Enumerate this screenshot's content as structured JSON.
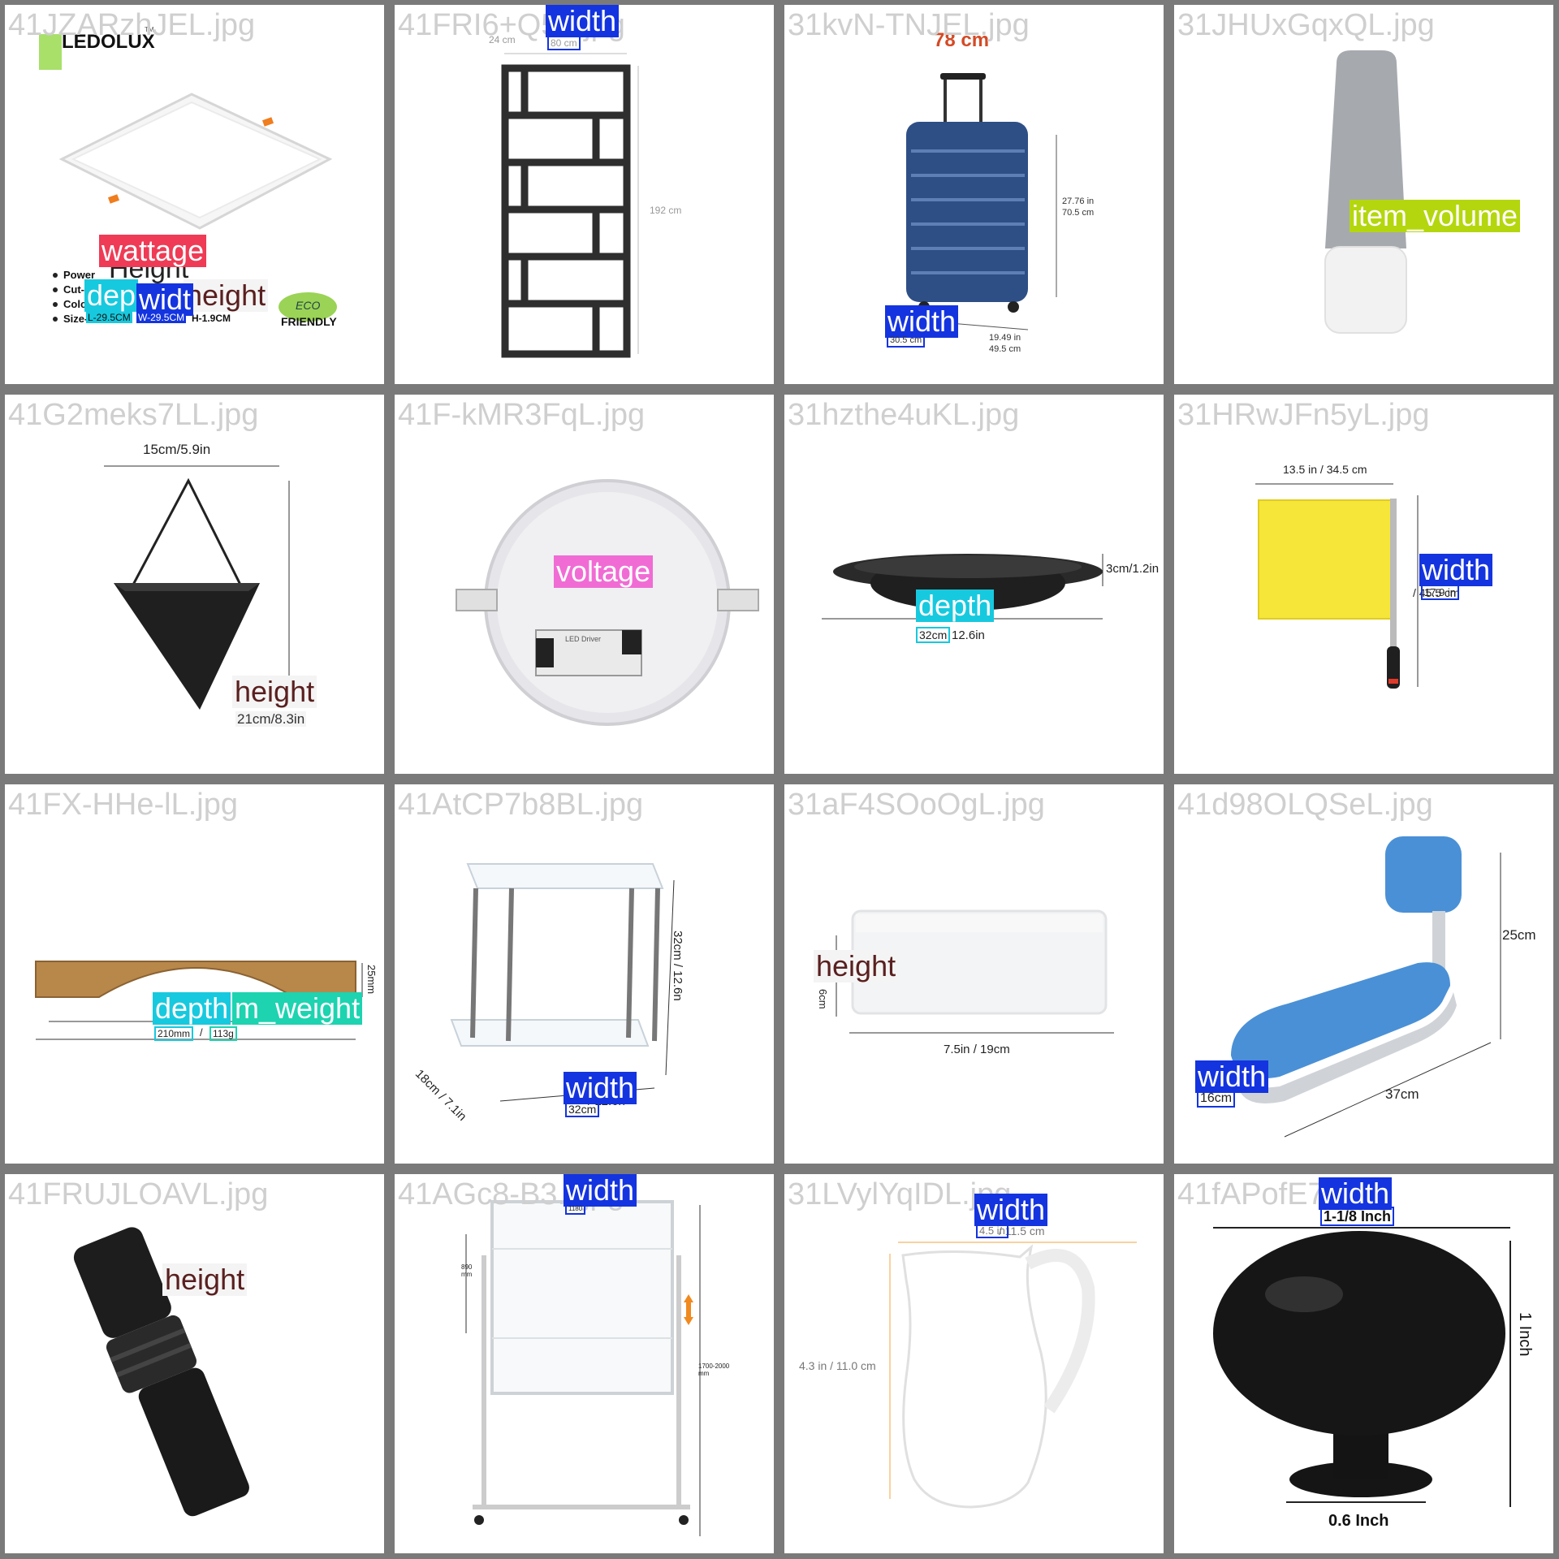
{
  "colors": {
    "width": "#1434e0",
    "depth": "#17c9de",
    "height": "#5a1f1f",
    "wattage": "#ef3b55",
    "voltage": "#f06cd4",
    "item_volume": "#b4d60e",
    "item_weight": "#1dd3b0",
    "grid_bg": "#7a7a7a"
  },
  "cells": [
    {
      "filename": "41JZARzhJEL.jpg",
      "image_text": {
        "brand": "LEDOLUX",
        "tm": "TM",
        "bullets": [
          "Power",
          "Cut-",
          "Colo",
          "Size-"
        ],
        "height_echo": "Height",
        "h_value": "H-1.9CM",
        "eco1": "ECO",
        "eco2": "FRIENDLY"
      },
      "labels": [
        {
          "label": "wattage",
          "value": ""
        },
        {
          "label": "dep",
          "value": "L-29.5CM"
        },
        {
          "label": "widt",
          "value": "W-29.5CM"
        },
        {
          "label": "height",
          "value": ""
        }
      ]
    },
    {
      "filename": "41FRI6+Q5...jpg",
      "image_text": {
        "top_dim": "24 cm",
        "side_dim": "192 cm"
      },
      "labels": [
        {
          "label": "width",
          "value": "80 cm"
        }
      ]
    },
    {
      "filename": "31kvN-TNJEL.jpg",
      "image_text": {
        "headline": "78 cm",
        "h_dim1": "27.76 in",
        "h_dim2": "70.5 cm",
        "w_dim1": "19.49 in",
        "w_dim2": "49.5 cm"
      },
      "labels": [
        {
          "label": "width",
          "value": "30.5 cm"
        }
      ]
    },
    {
      "filename": "31JHUxGqxQL.jpg",
      "image_text": {},
      "labels": [
        {
          "label": "item_volume",
          "value": ""
        }
      ]
    },
    {
      "filename": "41G2meks7LL.jpg",
      "image_text": {
        "top_dim": "15cm/5.9in"
      },
      "labels": [
        {
          "label": "height",
          "value": "21cm/8.3in"
        }
      ]
    },
    {
      "filename": "41F-kMR3FqL.jpg",
      "image_text": {
        "driver": "LED Driver"
      },
      "labels": [
        {
          "label": "voltage",
          "value": ""
        }
      ]
    },
    {
      "filename": "31hzthe4uKL.jpg",
      "image_text": {
        "side_dim": "3cm/1.2in",
        "rest": "12.6in"
      },
      "labels": [
        {
          "label": "depth",
          "value": "32cm"
        }
      ]
    },
    {
      "filename": "31HRwJFn5yL.jpg",
      "image_text": {
        "top_dim": "13.5 in / 34.5 cm",
        "rest": "/ 45.5 cm"
      },
      "labels": [
        {
          "label": "width",
          "value": "17.9 in"
        }
      ]
    },
    {
      "filename": "41FX-HHe-lL.jpg",
      "image_text": {
        "side_dim": "25mm",
        "sep": "/"
      },
      "labels": [
        {
          "label": "depth",
          "value": "210mm"
        },
        {
          "label": "item_weight",
          "display": "m_weight",
          "value": "113g"
        }
      ]
    },
    {
      "filename": "41AtCP7b8BL.jpg",
      "image_text": {
        "side_dim": "32cm / 12.6n",
        "diag_dim": "18cm / 7.1in",
        "rest": "/ 12.6n"
      },
      "labels": [
        {
          "label": "width",
          "value": "32cm"
        }
      ]
    },
    {
      "filename": "31aF4SOoOgL.jpg",
      "image_text": {
        "side_dim": "6cm",
        "bottom_dim": "7.5in / 19cm"
      },
      "labels": [
        {
          "label": "height",
          "value": ""
        }
      ]
    },
    {
      "filename": "41d98OLQSeL.jpg",
      "image_text": {
        "side_dim": "25cm",
        "bottom_dim": "37cm"
      },
      "labels": [
        {
          "label": "width",
          "value": "16cm"
        }
      ]
    },
    {
      "filename": "41FRUJLOAVL.jpg",
      "image_text": {},
      "labels": [
        {
          "label": "height",
          "value": ""
        }
      ]
    },
    {
      "filename": "41AGc8-B3...jpg",
      "image_text": {
        "left_dim": "890 mm",
        "right_dim": "1700-2000 mm"
      },
      "labels": [
        {
          "label": "width",
          "value": "1180"
        }
      ]
    },
    {
      "filename": "31LVylYqIDL.jpg",
      "image_text": {
        "side_dim": "4.3 in / 11.0 cm",
        "rest": "/ 11.5 cm"
      },
      "labels": [
        {
          "label": "width",
          "value": "4.5 in"
        }
      ]
    },
    {
      "filename": "41fAPofE7...jpg",
      "image_text": {
        "side_dim": "1 Inch",
        "bottom_dim": "0.6 Inch"
      },
      "labels": [
        {
          "label": "width",
          "value": "1-1/8 Inch"
        }
      ]
    }
  ]
}
